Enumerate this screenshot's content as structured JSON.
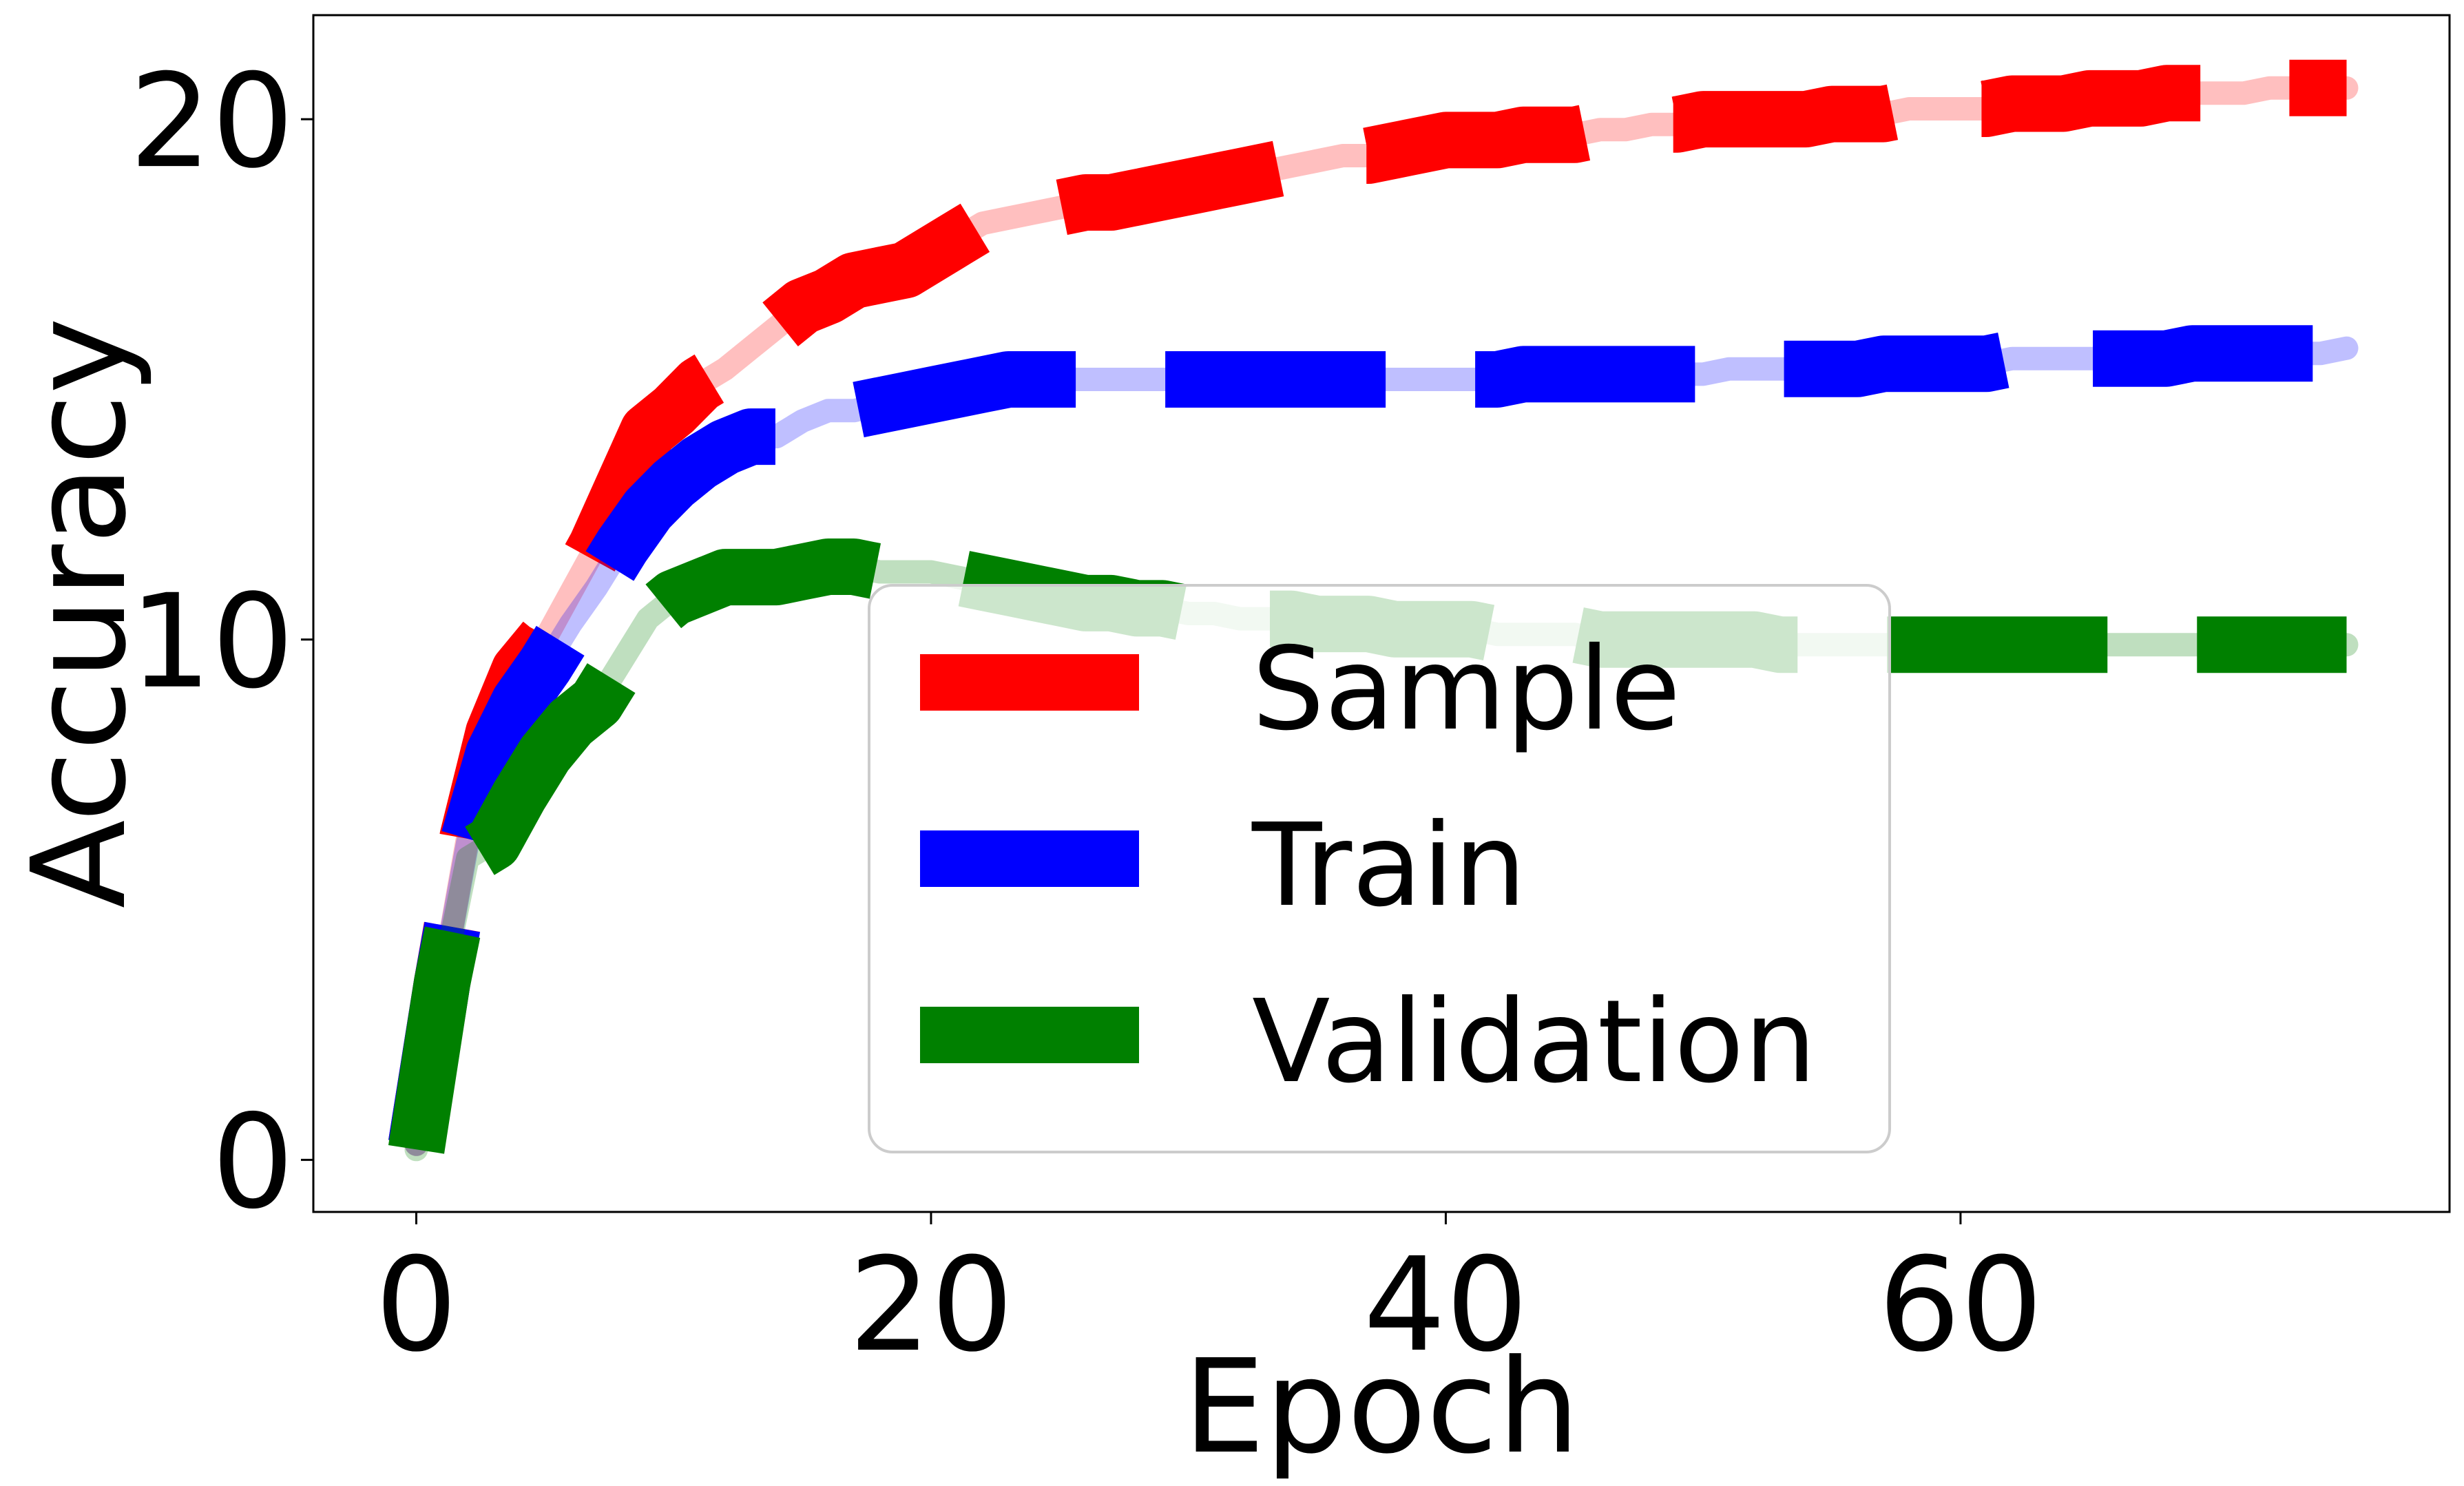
{
  "chart_data": {
    "type": "line",
    "xlabel": "Epoch",
    "ylabel": "Accuracy",
    "xlim": [
      -4,
      79
    ],
    "ylim": [
      -1,
      22
    ],
    "xticks": [
      0,
      20,
      40,
      60
    ],
    "yticks": [
      0,
      10,
      20
    ],
    "grid": false,
    "legend": "center",
    "series": [
      {
        "name": "Sample",
        "color": "#ff0000",
        "x": [
          0,
          1,
          2,
          3,
          4,
          5,
          6,
          7,
          8,
          9,
          10,
          11,
          12,
          13,
          14,
          15,
          16,
          17,
          18,
          19,
          20,
          21,
          22,
          23,
          24,
          25,
          26,
          27,
          28,
          29,
          30,
          31,
          32,
          33,
          34,
          35,
          36,
          37,
          38,
          39,
          40,
          41,
          42,
          43,
          44,
          45,
          46,
          47,
          48,
          49,
          50,
          51,
          52,
          53,
          54,
          55,
          56,
          57,
          58,
          59,
          60,
          61,
          62,
          63,
          64,
          65,
          66,
          67,
          68,
          69,
          70,
          71,
          72,
          73,
          74,
          75
        ],
        "y": [
          0.3,
          3.4,
          6.2,
          8.2,
          9.4,
          10.0,
          10.9,
          11.8,
          12.9,
          14.0,
          14.4,
          14.9,
          15.2,
          15.6,
          16.0,
          16.4,
          16.6,
          16.9,
          17.0,
          17.1,
          17.4,
          17.7,
          18.0,
          18.1,
          18.2,
          18.3,
          18.4,
          18.4,
          18.5,
          18.6,
          18.7,
          18.8,
          18.9,
          19.0,
          19.1,
          19.2,
          19.3,
          19.3,
          19.4,
          19.5,
          19.6,
          19.6,
          19.6,
          19.7,
          19.7,
          19.7,
          19.8,
          19.8,
          19.9,
          19.9,
          20.0,
          20.0,
          20.0,
          20.0,
          20.0,
          20.1,
          20.1,
          20.1,
          20.2,
          20.2,
          20.2,
          20.2,
          20.3,
          20.3,
          20.3,
          20.4,
          20.4,
          20.4,
          20.5,
          20.5,
          20.5,
          20.5,
          20.6,
          20.6,
          20.6,
          20.6
        ]
      },
      {
        "name": "Train",
        "color": "#0000ff",
        "x": [
          0,
          1,
          2,
          3,
          4,
          5,
          6,
          7,
          8,
          9,
          10,
          11,
          12,
          13,
          14,
          15,
          16,
          17,
          18,
          19,
          20,
          21,
          22,
          23,
          24,
          25,
          26,
          27,
          28,
          29,
          30,
          31,
          32,
          33,
          34,
          35,
          36,
          37,
          38,
          39,
          40,
          41,
          42,
          43,
          44,
          45,
          46,
          47,
          48,
          49,
          50,
          51,
          52,
          53,
          54,
          55,
          56,
          57,
          58,
          59,
          60,
          61,
          62,
          63,
          64,
          65,
          66,
          67,
          68,
          69,
          70,
          71,
          72,
          73,
          74,
          75
        ],
        "y": [
          0.3,
          3.4,
          6.1,
          7.8,
          8.8,
          9.5,
          10.3,
          11.0,
          11.8,
          12.5,
          13.0,
          13.4,
          13.7,
          13.9,
          13.9,
          14.2,
          14.4,
          14.4,
          14.5,
          14.6,
          14.7,
          14.8,
          14.9,
          15.0,
          15.0,
          15.0,
          15.0,
          15.0,
          15.0,
          15.0,
          15.0,
          15.0,
          15.0,
          15.0,
          15.0,
          15.0,
          15.0,
          15.0,
          15.0,
          15.0,
          15.0,
          15.0,
          15.0,
          15.1,
          15.1,
          15.1,
          15.1,
          15.1,
          15.1,
          15.1,
          15.1,
          15.2,
          15.2,
          15.2,
          15.2,
          15.2,
          15.2,
          15.3,
          15.3,
          15.3,
          15.3,
          15.3,
          15.4,
          15.4,
          15.4,
          15.4,
          15.4,
          15.4,
          15.4,
          15.5,
          15.5,
          15.5,
          15.5,
          15.5,
          15.5,
          15.6
        ]
      },
      {
        "name": "Validation",
        "color": "#008000",
        "x": [
          0,
          1,
          2,
          3,
          4,
          5,
          6,
          7,
          8,
          9,
          10,
          11,
          12,
          13,
          14,
          15,
          16,
          17,
          18,
          19,
          20,
          21,
          22,
          23,
          24,
          25,
          26,
          27,
          28,
          29,
          30,
          31,
          32,
          33,
          34,
          35,
          36,
          37,
          38,
          39,
          40,
          41,
          42,
          43,
          44,
          45,
          46,
          47,
          48,
          49,
          50,
          51,
          52,
          53,
          54,
          55,
          56,
          57,
          58,
          59,
          60,
          61,
          62,
          63,
          64,
          65,
          66,
          67,
          68,
          69,
          70,
          71,
          72,
          73,
          74,
          75
        ],
        "y": [
          0.2,
          3.4,
          5.8,
          6.1,
          7.0,
          7.8,
          8.4,
          8.8,
          9.6,
          10.4,
          10.8,
          11.0,
          11.2,
          11.2,
          11.2,
          11.3,
          11.4,
          11.4,
          11.3,
          11.3,
          11.3,
          11.2,
          11.1,
          11.0,
          10.9,
          10.8,
          10.7,
          10.7,
          10.6,
          10.6,
          10.5,
          10.5,
          10.4,
          10.4,
          10.4,
          10.3,
          10.3,
          10.3,
          10.2,
          10.2,
          10.2,
          10.2,
          10.1,
          10.1,
          10.1,
          10.1,
          10.0,
          10.0,
          10.0,
          10.0,
          10.0,
          10.0,
          10.0,
          9.9,
          9.9,
          9.9,
          9.9,
          9.9,
          9.9,
          9.9,
          9.9,
          9.9,
          9.9,
          9.9,
          9.9,
          9.9,
          9.9,
          9.9,
          9.9,
          9.9,
          9.9,
          9.9,
          9.9,
          9.9,
          9.9,
          9.9
        ]
      }
    ]
  }
}
